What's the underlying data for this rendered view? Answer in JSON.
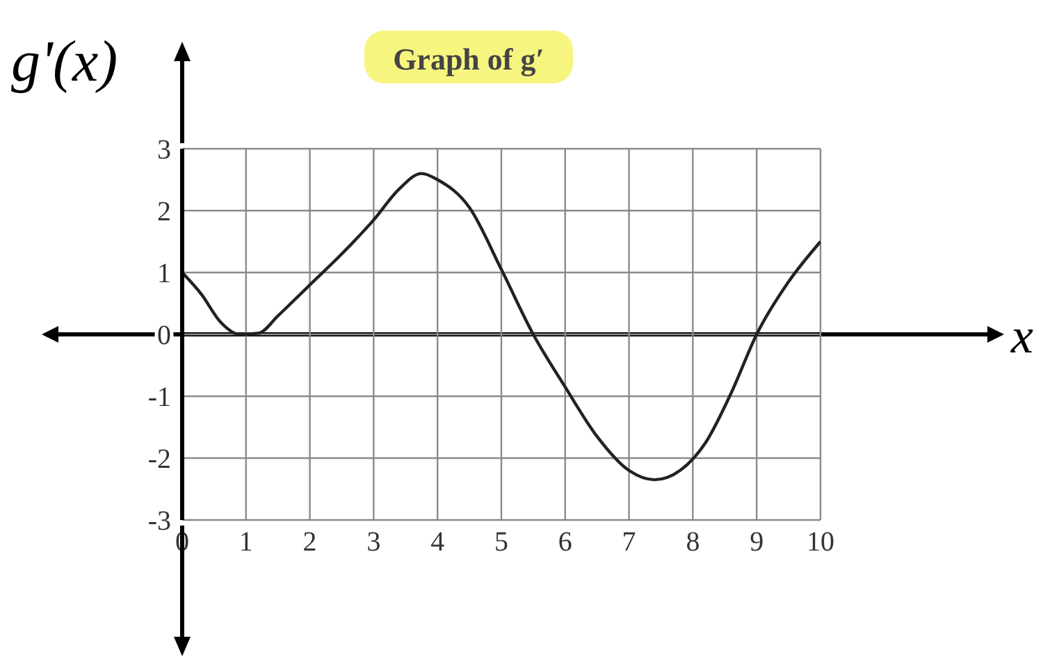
{
  "chart_data": {
    "type": "line",
    "title": "Graph of g′",
    "xlabel": "x",
    "ylabel": "g'(x)",
    "x": [
      0,
      0.3,
      0.6,
      0.9,
      1.2,
      1.5,
      2,
      2.5,
      3,
      3.4,
      3.75,
      4,
      4.5,
      5,
      5.5,
      6,
      6.5,
      7,
      7.4,
      7.8,
      8.2,
      8.6,
      9,
      9.5,
      10
    ],
    "series": [
      {
        "color": "#222222",
        "values": [
          1,
          0.65,
          0.2,
          0,
          0.02,
          0.3,
          0.8,
          1.3,
          1.85,
          2.35,
          2.6,
          2.5,
          2.05,
          1.05,
          0,
          -0.85,
          -1.65,
          -2.2,
          -2.35,
          -2.2,
          -1.75,
          -0.95,
          0,
          0.85,
          1.5
        ]
      }
    ],
    "xlim": [
      0,
      10
    ],
    "xticks": [
      0,
      1,
      2,
      3,
      4,
      5,
      6,
      7,
      8,
      9,
      10
    ],
    "ylim": [
      -3,
      3
    ],
    "yticks": [
      -3,
      -2,
      -1,
      0,
      1,
      2,
      3
    ],
    "ref_lines": [
      {
        "axis": "y",
        "value": 0,
        "color": "#000000"
      }
    ],
    "grid": true,
    "legend": false,
    "marker": "none",
    "line_style": "solid"
  }
}
